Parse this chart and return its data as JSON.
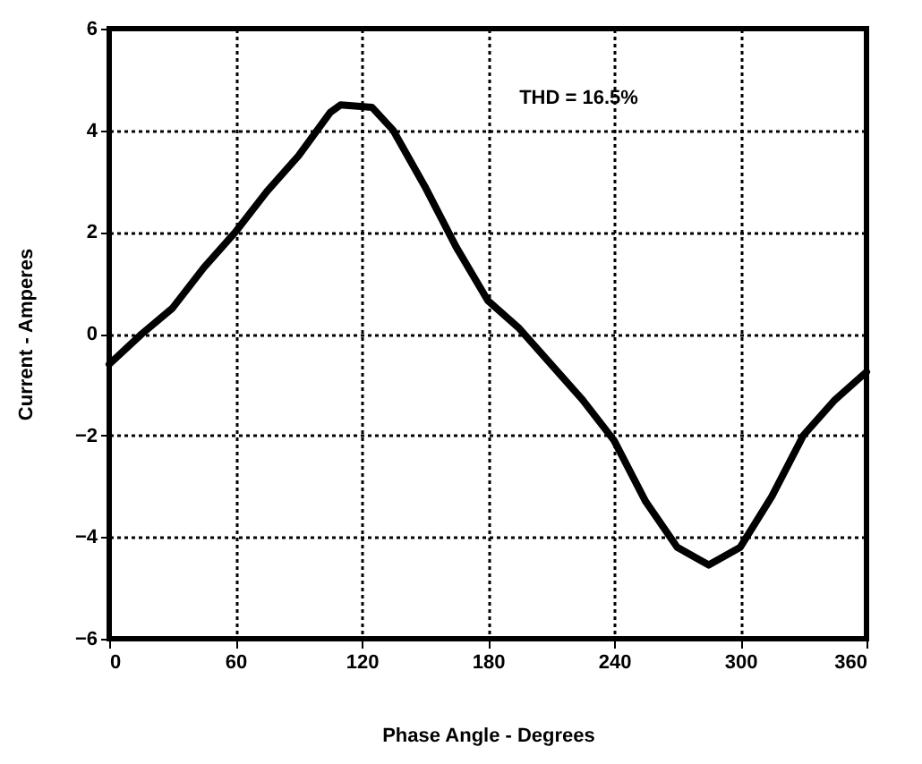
{
  "chart_data": {
    "type": "line",
    "xlabel": "Phase Angle - Degrees",
    "ylabel": "Current - Amperes",
    "annotations": [
      "THD = 16.5%"
    ],
    "x": [
      0,
      15.6,
      30,
      45,
      60,
      75,
      90,
      105,
      110,
      125,
      135,
      150,
      165,
      180,
      195,
      210,
      225,
      240,
      255,
      270,
      285,
      300,
      315,
      330,
      345,
      360
    ],
    "series": [
      {
        "color": "#000000",
        "values": [
          -0.6,
          0,
          0.5,
          1.3,
          2.0,
          2.8,
          3.5,
          4.35,
          4.5,
          4.45,
          4.0,
          2.9,
          1.7,
          0.65,
          0.1,
          -0.6,
          -1.3,
          -2.1,
          -3.3,
          -4.2,
          -4.55,
          -4.2,
          -3.2,
          -2.0,
          -1.3,
          -0.75
        ]
      }
    ],
    "xlim": [
      0,
      360
    ],
    "xticks": [
      0,
      60,
      120,
      180,
      240,
      300,
      360
    ],
    "ylim": [
      -6,
      6
    ],
    "yticks": [
      -6,
      -4,
      -2,
      0,
      2,
      4,
      6
    ],
    "grid": true,
    "marker": "none",
    "line_style": "solid"
  }
}
